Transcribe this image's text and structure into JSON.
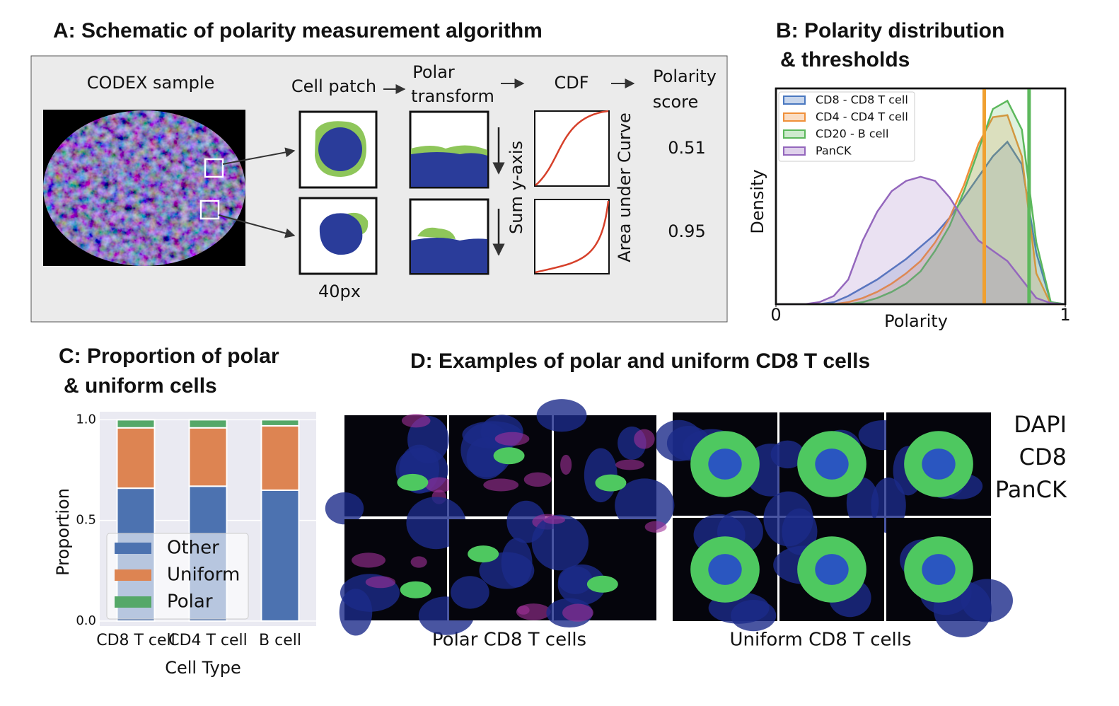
{
  "panel_a": {
    "title": "A: Schematic of polarity measurement algorithm",
    "codex_label": "CODEX sample",
    "steps": [
      [
        "Cell patch"
      ],
      [
        "Polar",
        "transform"
      ],
      [
        "CDF"
      ],
      [
        "Polarity",
        "score"
      ]
    ],
    "sum_label": "Sum y-axis",
    "auc_label": "Area under Curve",
    "patch_size": "40px",
    "scores": [
      0.51,
      0.95
    ]
  },
  "chart_data": [
    {
      "type": "area",
      "title": [
        "B: Polarity distribution",
        "& thresholds"
      ],
      "x_label": "Polarity",
      "y_label": "Density",
      "x": [
        0,
        0.05,
        0.1,
        0.15,
        0.2,
        0.25,
        0.3,
        0.35,
        0.4,
        0.45,
        0.5,
        0.55,
        0.6,
        0.65,
        0.7,
        0.75,
        0.8,
        0.85,
        0.9,
        0.95,
        1
      ],
      "series": [
        {
          "name": "CD8 - CD8 T cell",
          "color": "#4a78c0",
          "values": [
            0,
            0,
            0,
            0,
            0.01,
            0.04,
            0.08,
            0.12,
            0.17,
            0.22,
            0.28,
            0.34,
            0.42,
            0.52,
            0.62,
            0.72,
            0.79,
            0.68,
            0.25,
            0.01,
            0
          ]
        },
        {
          "name": "CD4 - CD4 T cell",
          "color": "#f0903a",
          "values": [
            0,
            0,
            0,
            0,
            0,
            0.01,
            0.03,
            0.06,
            0.1,
            0.15,
            0.21,
            0.3,
            0.42,
            0.58,
            0.78,
            0.91,
            0.92,
            0.72,
            0.15,
            0,
            0
          ]
        },
        {
          "name": "CD20 - B cell",
          "color": "#5cb85c",
          "values": [
            0,
            0,
            0,
            0,
            0,
            0,
            0.01,
            0.03,
            0.06,
            0.1,
            0.16,
            0.26,
            0.38,
            0.55,
            0.75,
            0.95,
            0.99,
            0.85,
            0.3,
            0.01,
            0
          ]
        },
        {
          "name": "PanCK",
          "color": "#9467bd",
          "values": [
            0,
            0,
            0,
            0.01,
            0.04,
            0.12,
            0.31,
            0.45,
            0.55,
            0.6,
            0.62,
            0.6,
            0.52,
            0.41,
            0.31,
            0.26,
            0.21,
            0.12,
            0.03,
            0.005,
            0
          ]
        }
      ],
      "thresholds": [
        {
          "value": 0.72,
          "color": "#f0a030"
        },
        {
          "value": 0.875,
          "color": "#5cb85c"
        }
      ],
      "xlim": [
        0,
        1
      ],
      "xticks": [
        0,
        1
      ],
      "ylim": [
        0,
        1.05
      ],
      "legend": "upper left"
    },
    {
      "type": "stacked_bar",
      "title": [
        "C: Proportion of polar",
        "& uniform cells"
      ],
      "x_label": "Cell Type",
      "y_label": "Proportion",
      "categories": [
        "CD8 T cell",
        "CD4 T cell",
        "B cell"
      ],
      "series": [
        {
          "name": "Other",
          "color": "#4c72b0",
          "values": [
            0.66,
            0.67,
            0.65
          ]
        },
        {
          "name": "Uniform",
          "color": "#dd8452",
          "values": [
            0.3,
            0.29,
            0.32
          ]
        },
        {
          "name": "Polar",
          "color": "#55a868",
          "values": [
            0.04,
            0.04,
            0.03
          ]
        }
      ],
      "ylim": [
        -0.025,
        1.04
      ],
      "yticks": [
        {
          "value": 0,
          "label": "0.0"
        },
        {
          "value": 0.5,
          "label": "0.5"
        },
        {
          "value": 1,
          "label": "1.0"
        }
      ],
      "grid": true,
      "legend": "lower left"
    }
  ],
  "panel_d": {
    "title": "D: Examples of polar and uniform CD8 T cells",
    "captions": [
      "Polar CD8 T cells",
      "Uniform CD8 T cells"
    ],
    "channels": [
      {
        "name": "DAPI",
        "color": "#34349e"
      },
      {
        "name": "CD8",
        "color": "#3cb36a"
      },
      {
        "name": "PanCK",
        "color": "#a040c0"
      }
    ]
  }
}
